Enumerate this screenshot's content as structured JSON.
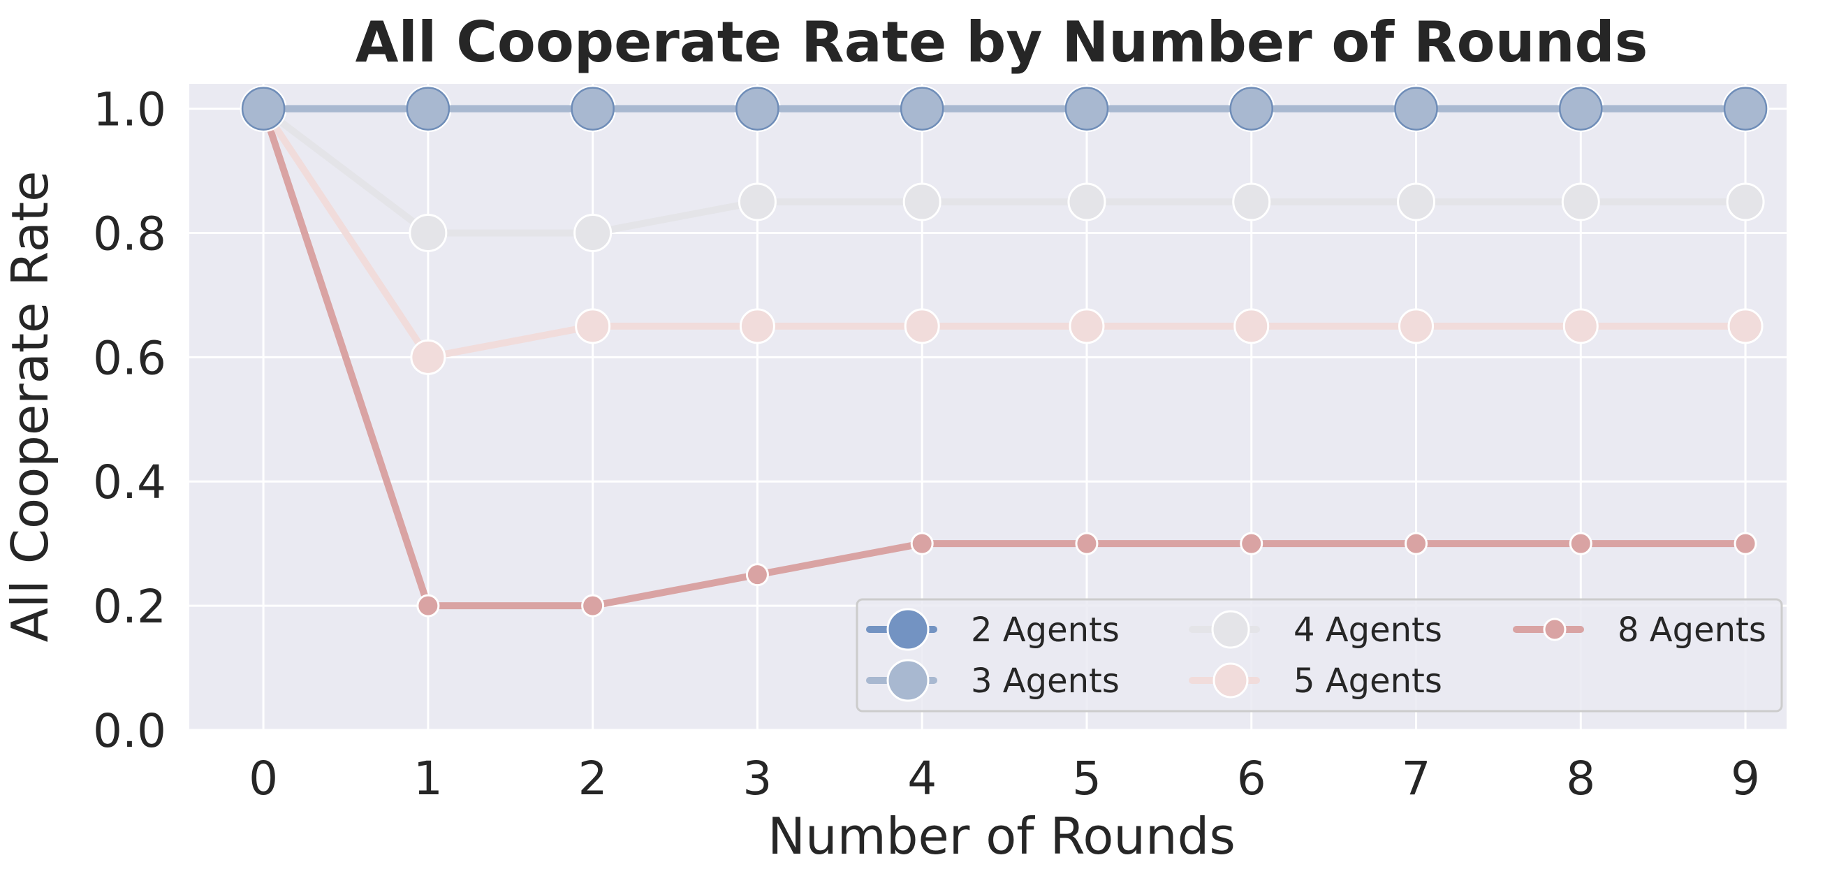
{
  "chart_data": {
    "type": "line",
    "title": "All Cooperate Rate by Number of Rounds",
    "xlabel": "Number of Rounds",
    "ylabel": "All Cooperate Rate",
    "x": [
      0,
      1,
      2,
      3,
      4,
      5,
      6,
      7,
      8,
      9
    ],
    "x_ticks": [
      "0",
      "1",
      "2",
      "3",
      "4",
      "5",
      "6",
      "7",
      "8",
      "9"
    ],
    "y_ticks": [
      "0.0",
      "0.2",
      "0.4",
      "0.6",
      "0.8",
      "1.0"
    ],
    "xlim": [
      -0.45,
      9.25
    ],
    "ylim": [
      0.0,
      1.04
    ],
    "grid": true,
    "legend_position": "lower-right",
    "legend_columns": 3,
    "series": [
      {
        "name": "2 Agents",
        "color": "#7393c2",
        "values": [
          1.0,
          1.0,
          1.0,
          1.0,
          1.0,
          1.0,
          1.0,
          1.0,
          1.0,
          1.0
        ]
      },
      {
        "name": "3 Agents",
        "color": "#a8b8d0",
        "values": [
          1.0,
          1.0,
          1.0,
          1.0,
          1.0,
          1.0,
          1.0,
          1.0,
          1.0,
          1.0
        ]
      },
      {
        "name": "4 Agents",
        "color": "#e4e4e8",
        "values": [
          1.0,
          0.8,
          0.8,
          0.85,
          0.85,
          0.85,
          0.85,
          0.85,
          0.85,
          0.85
        ]
      },
      {
        "name": "5 Agents",
        "color": "#f1dcdb",
        "values": [
          1.0,
          0.6,
          0.65,
          0.65,
          0.65,
          0.65,
          0.65,
          0.65,
          0.65,
          0.65
        ]
      },
      {
        "name": "8 Agents",
        "color": "#d9a3a3",
        "values": [
          1.0,
          0.2,
          0.2,
          0.25,
          0.3,
          0.3,
          0.3,
          0.3,
          0.3,
          0.3
        ]
      }
    ]
  }
}
